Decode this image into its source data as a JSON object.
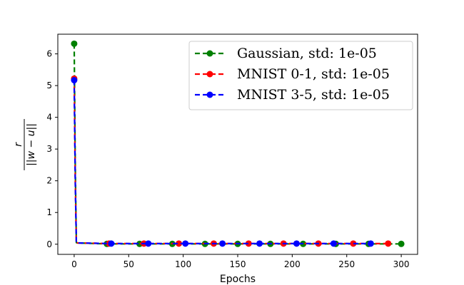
{
  "chart_data": {
    "type": "line",
    "title": "",
    "xlabel": "Epochs",
    "ylabel": "r / ||w - u||",
    "ylabel_parts": {
      "numerator": "r",
      "denominator": "||w − u||"
    },
    "xlim": [
      -15,
      315
    ],
    "ylim": [
      -0.32,
      6.62
    ],
    "xticks": [
      "0",
      "50",
      "100",
      "150",
      "200",
      "250",
      "300"
    ],
    "yticks": [
      "0",
      "1",
      "2",
      "3",
      "4",
      "5",
      "6"
    ],
    "legend_position": "upper-right",
    "grid": false,
    "series": [
      {
        "name": "Gaussian, std: 1e-05",
        "color": "#008000",
        "x": [
          0,
          1,
          2,
          3,
          30,
          60,
          90,
          120,
          150,
          180,
          210,
          240,
          270,
          300
        ],
        "y": [
          6.32,
          2.5,
          0.05,
          0.04,
          0.01,
          0.01,
          0.01,
          0.01,
          0.01,
          0.01,
          0.01,
          0.01,
          0.01,
          0.01
        ],
        "markers": [
          0,
          30,
          60,
          90,
          120,
          150,
          180,
          210,
          240,
          270,
          300
        ]
      },
      {
        "name": "MNIST 0-1, std: 1e-05",
        "color": "#ff0000",
        "x": [
          0,
          1,
          2,
          3,
          32,
          64,
          96,
          128,
          160,
          192,
          224,
          256,
          288
        ],
        "y": [
          5.22,
          2.0,
          0.05,
          0.04,
          0.02,
          0.02,
          0.02,
          0.02,
          0.02,
          0.02,
          0.02,
          0.02,
          0.02
        ],
        "markers": [
          0,
          32,
          64,
          96,
          128,
          160,
          192,
          224,
          256,
          288
        ]
      },
      {
        "name": "MNIST 3-5, std: 1e-05",
        "color": "#0000ff",
        "x": [
          0,
          1,
          2,
          3,
          34,
          68,
          102,
          136,
          170,
          204,
          238,
          272
        ],
        "y": [
          5.17,
          2.0,
          0.05,
          0.04,
          0.02,
          0.02,
          0.02,
          0.02,
          0.02,
          0.02,
          0.02,
          0.02
        ],
        "markers": [
          0,
          34,
          68,
          102,
          136,
          170,
          204,
          238,
          272
        ]
      }
    ]
  }
}
